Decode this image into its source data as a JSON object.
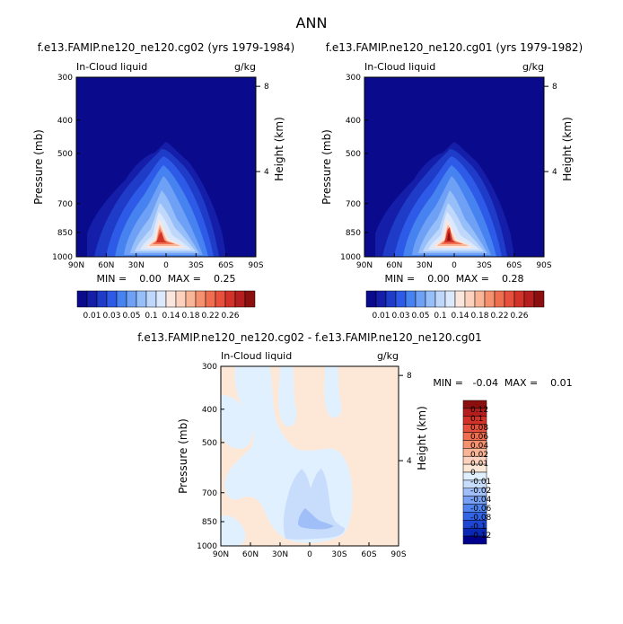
{
  "figure_title": "ANN",
  "colors": {
    "panel_background": "#00008B",
    "full_scale": [
      "#0a0a8c",
      "#141ea8",
      "#1e3cc8",
      "#2d5ae6",
      "#4682f0",
      "#6ea0f5",
      "#96bef8",
      "#bed7fa",
      "#dce9fc",
      "#fae6dc",
      "#fcd2be",
      "#fab496",
      "#f5916e",
      "#f06e50",
      "#e6503c",
      "#d23228",
      "#b41e1e",
      "#8c0f0f"
    ],
    "diff_scale": [
      "#00008c",
      "#0a28b4",
      "#1e46d2",
      "#3264e6",
      "#5082f0",
      "#78a0f5",
      "#a0bef8",
      "#c8dcfc",
      "#e1f0ff",
      "#fde8d8",
      "#fcd2be",
      "#fab496",
      "#f5916e",
      "#f06e50",
      "#e6503c",
      "#d23228",
      "#b41e1e",
      "#8c0f0f"
    ]
  },
  "chart_data": [
    {
      "type": "heatmap",
      "title": "f.e13.FAMIP.ne120_ne120.cg02 (yrs 1979-1984)",
      "left_label": "In-Cloud liquid",
      "right_label": "g/kg",
      "xlabel": "",
      "ylabel": "Pressure (mb)",
      "ylabel_right": "Height (km)",
      "x_ticks": [
        "90N",
        "60N",
        "30N",
        "0",
        "30S",
        "60S",
        "90S"
      ],
      "y_ticks": [
        300,
        400,
        500,
        700,
        850,
        1000
      ],
      "y_right_ticks": [
        4,
        8
      ],
      "ylim": [
        1000,
        300
      ],
      "min_max_text": "MIN =    0.00  MAX =    0.25",
      "min": 0.0,
      "max": 0.25,
      "colorbar_labels": [
        "0.01",
        "0.03",
        "0.05",
        "0.1",
        "0.14",
        "0.18",
        "0.22",
        "0.26"
      ]
    },
    {
      "type": "heatmap",
      "title": "f.e13.FAMIP.ne120_ne120.cg01 (yrs 1979-1982)",
      "left_label": "In-Cloud liquid",
      "right_label": "g/kg",
      "xlabel": "",
      "ylabel": "Pressure (mb)",
      "ylabel_right": "Height (km)",
      "x_ticks": [
        "90N",
        "60N",
        "30N",
        "0",
        "30S",
        "60S",
        "90S"
      ],
      "y_ticks": [
        300,
        400,
        500,
        700,
        850,
        1000
      ],
      "y_right_ticks": [
        4,
        8
      ],
      "ylim": [
        1000,
        300
      ],
      "min_max_text": "MIN =    0.00  MAX =    0.28",
      "min": 0.0,
      "max": 0.28,
      "colorbar_labels": [
        "0.01",
        "0.03",
        "0.05",
        "0.1",
        "0.14",
        "0.18",
        "0.22",
        "0.26"
      ]
    },
    {
      "type": "heatmap",
      "title": "f.e13.FAMIP.ne120_ne120.cg02 - f.e13.FAMIP.ne120_ne120.cg01",
      "left_label": "In-Cloud liquid",
      "right_label": "g/kg",
      "xlabel": "",
      "ylabel": "Pressure (mb)",
      "ylabel_right": "Height (km)",
      "x_ticks": [
        "90N",
        "60N",
        "30N",
        "0",
        "30S",
        "60S",
        "90S"
      ],
      "y_ticks": [
        300,
        400,
        500,
        700,
        850,
        1000
      ],
      "y_right_ticks": [
        4,
        8
      ],
      "ylim": [
        1000,
        300
      ],
      "min_max_text": "MIN =   -0.04  MAX =    0.01",
      "min": -0.04,
      "max": 0.01,
      "colorbar_labels": [
        "0.12",
        "0.1",
        "0.08",
        "0.06",
        "0.04",
        "0.02",
        "0.01",
        "0",
        "-0.01",
        "-0.02",
        "-0.04",
        "-0.06",
        "-0.08",
        "-0.1",
        "-0.12"
      ]
    }
  ]
}
